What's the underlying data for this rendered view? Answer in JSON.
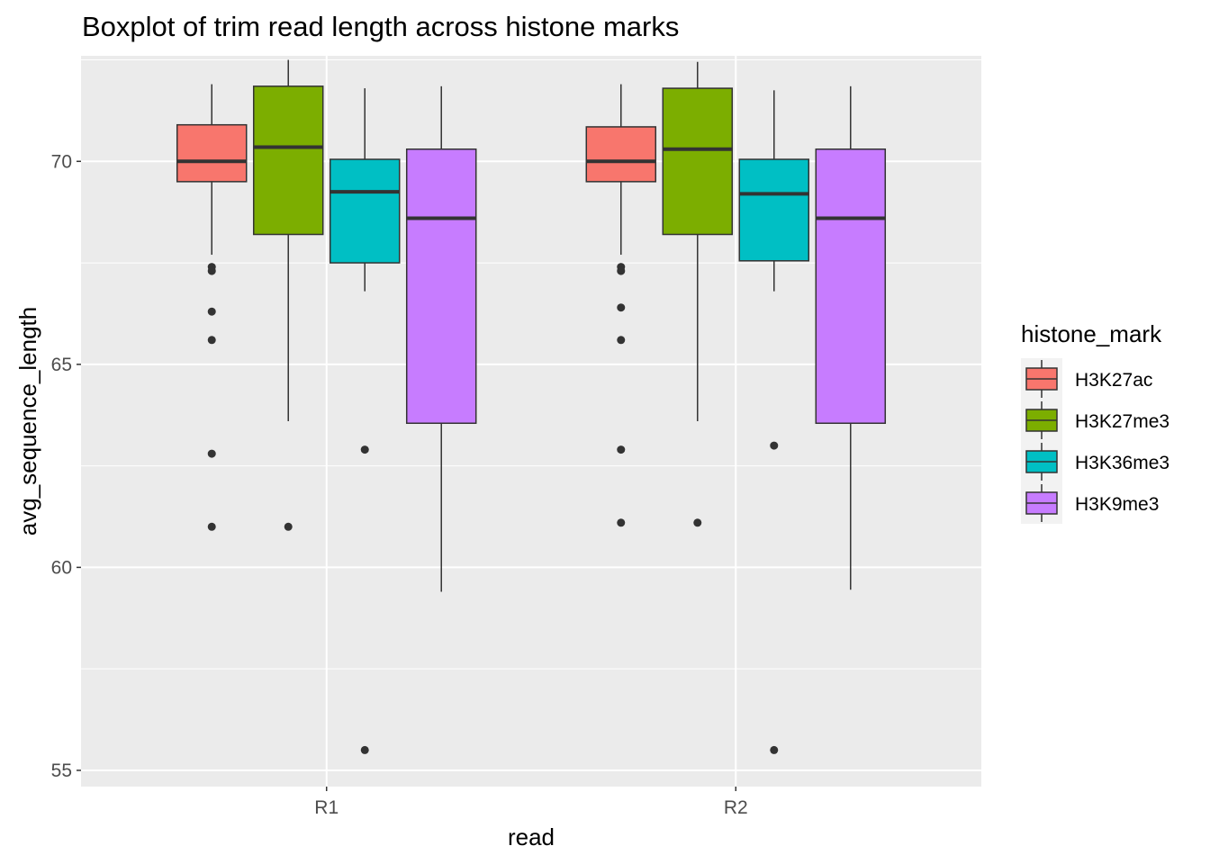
{
  "chart_data": {
    "type": "boxplot",
    "title": "Boxplot of trim read length across histone marks",
    "xlabel": "read",
    "ylabel": "avg_sequence_length",
    "categories": [
      "R1",
      "R2"
    ],
    "ylim": [
      54.6,
      72.6
    ],
    "yticks": [
      55,
      60,
      65,
      70
    ],
    "grid": true,
    "legend": {
      "title": "histone_mark",
      "position": "right"
    },
    "series": [
      {
        "name": "H3K27ac",
        "color": "#F8766D",
        "boxes": [
          {
            "category": "R1",
            "whisker_low": 67.7,
            "q1": 69.5,
            "median": 70.0,
            "q3": 70.9,
            "whisker_high": 71.9,
            "outliers": [
              67.4,
              67.3,
              66.3,
              65.6,
              62.8,
              61.0
            ]
          },
          {
            "category": "R2",
            "whisker_low": 67.7,
            "q1": 69.5,
            "median": 70.0,
            "q3": 70.85,
            "whisker_high": 71.9,
            "outliers": [
              67.4,
              67.3,
              66.4,
              65.6,
              62.9,
              61.1
            ]
          }
        ]
      },
      {
        "name": "H3K27me3",
        "color": "#7CAE00",
        "boxes": [
          {
            "category": "R1",
            "whisker_low": 63.6,
            "q1": 68.2,
            "median": 70.35,
            "q3": 71.85,
            "whisker_high": 72.5,
            "outliers": [
              61.0
            ]
          },
          {
            "category": "R2",
            "whisker_low": 63.6,
            "q1": 68.2,
            "median": 70.3,
            "q3": 71.8,
            "whisker_high": 72.45,
            "outliers": [
              61.1
            ]
          }
        ]
      },
      {
        "name": "H3K36me3",
        "color": "#00BFC4",
        "boxes": [
          {
            "category": "R1",
            "whisker_low": 66.8,
            "q1": 67.5,
            "median": 69.25,
            "q3": 70.05,
            "whisker_high": 71.8,
            "outliers": [
              62.9,
              55.5
            ]
          },
          {
            "category": "R2",
            "whisker_low": 66.8,
            "q1": 67.55,
            "median": 69.2,
            "q3": 70.05,
            "whisker_high": 71.75,
            "outliers": [
              63.0,
              55.5
            ]
          }
        ]
      },
      {
        "name": "H3K9me3",
        "color": "#C77CFF",
        "boxes": [
          {
            "category": "R1",
            "whisker_low": 59.4,
            "q1": 63.55,
            "median": 68.6,
            "q3": 70.3,
            "whisker_high": 71.85,
            "outliers": []
          },
          {
            "category": "R2",
            "whisker_low": 59.45,
            "q1": 63.55,
            "median": 68.6,
            "q3": 70.3,
            "whisker_high": 71.85,
            "outliers": []
          }
        ]
      }
    ]
  }
}
